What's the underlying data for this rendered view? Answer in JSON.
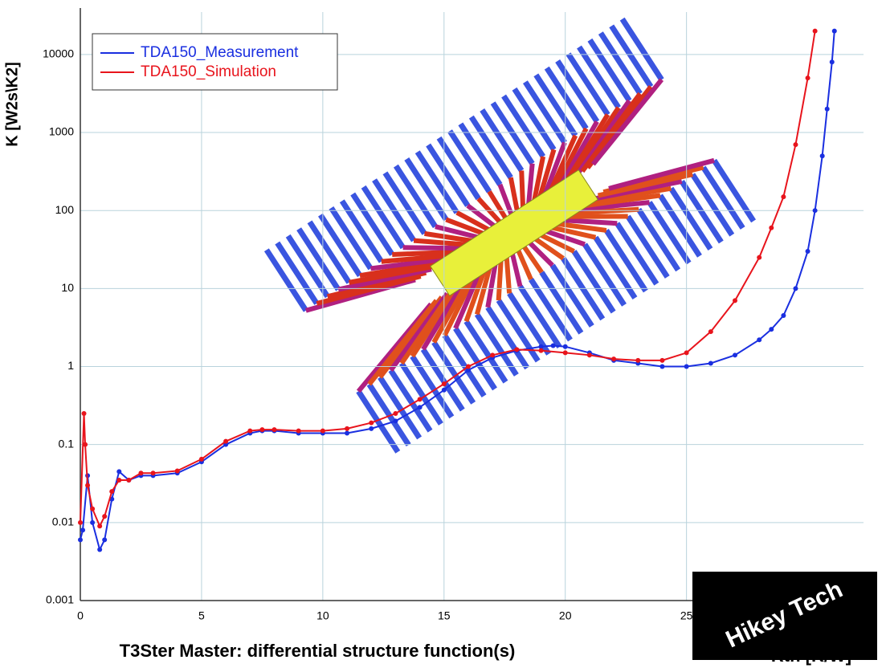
{
  "chart_data": {
    "type": "line",
    "caption": "T3Ster Master: differential structure function(s)",
    "xlabel": "Rth [K/W]",
    "ylabel": "K [W2s\\K2]",
    "yscale": "log",
    "grid": true,
    "legend": "upper left",
    "xlim": [
      0,
      32.3
    ],
    "ylim": [
      0.001,
      35000
    ],
    "xticks": [
      0,
      5,
      10,
      15,
      20,
      25
    ],
    "yticks": [
      0.001,
      0.01,
      0.1,
      1,
      10,
      100,
      1000,
      10000
    ],
    "series": [
      {
        "name": "TDA150_Measurement",
        "color": "#1a2fe0",
        "x": [
          0,
          0.1,
          0.3,
          0.5,
          0.8,
          1.0,
          1.3,
          1.6,
          2,
          2.5,
          3,
          4,
          5,
          6,
          7,
          7.5,
          8,
          9,
          10,
          11,
          12,
          13,
          14,
          15,
          16,
          17,
          18,
          19,
          19.5,
          20,
          21,
          22,
          23,
          24,
          25,
          26,
          27,
          28,
          28.5,
          29,
          29.5,
          30,
          30.3,
          30.6,
          30.8,
          31,
          31.1
        ],
        "values": [
          0.006,
          0.008,
          0.04,
          0.01,
          0.0045,
          0.006,
          0.02,
          0.045,
          0.035,
          0.04,
          0.04,
          0.043,
          0.06,
          0.1,
          0.14,
          0.15,
          0.15,
          0.14,
          0.14,
          0.14,
          0.16,
          0.2,
          0.3,
          0.5,
          0.9,
          1.3,
          1.6,
          1.8,
          1.85,
          1.8,
          1.5,
          1.2,
          1.1,
          1.0,
          1.0,
          1.1,
          1.4,
          2.2,
          3,
          4.5,
          10,
          30,
          100,
          500,
          2000,
          8000,
          20000
        ]
      },
      {
        "name": "TDA150_Simulation",
        "color": "#e8141c",
        "x": [
          0,
          0.15,
          0.2,
          0.3,
          0.5,
          0.8,
          1.0,
          1.3,
          1.6,
          2,
          2.5,
          3,
          4,
          5,
          6,
          7,
          7.5,
          8,
          9,
          10,
          11,
          12,
          13,
          14,
          15,
          16,
          17,
          18,
          19,
          20,
          21,
          22,
          23,
          24,
          25,
          26,
          27,
          28,
          28.5,
          29,
          29.5,
          30,
          30.3
        ],
        "values": [
          0.01,
          0.25,
          0.1,
          0.03,
          0.015,
          0.009,
          0.012,
          0.025,
          0.035,
          0.035,
          0.043,
          0.043,
          0.046,
          0.065,
          0.11,
          0.15,
          0.155,
          0.155,
          0.15,
          0.15,
          0.16,
          0.19,
          0.25,
          0.38,
          0.6,
          1.0,
          1.4,
          1.65,
          1.6,
          1.5,
          1.4,
          1.25,
          1.2,
          1.2,
          1.5,
          2.8,
          7,
          25,
          60,
          150,
          700,
          5000,
          20000
        ]
      }
    ]
  },
  "watermark": "Hikey Tech"
}
